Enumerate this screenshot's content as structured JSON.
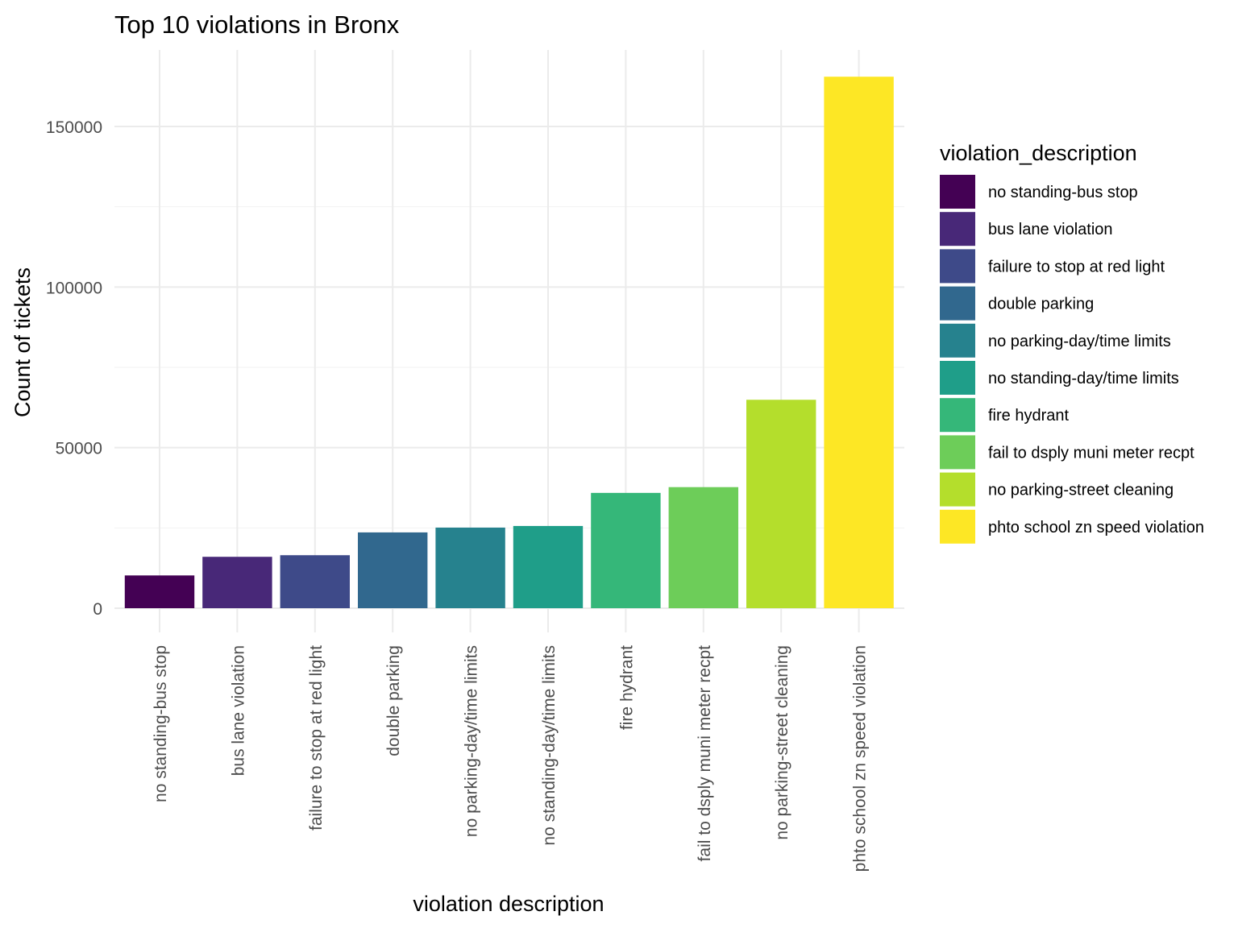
{
  "chart_data": {
    "type": "bar",
    "title": "Top 10 violations in Bronx",
    "xlabel": "violation description",
    "ylabel": "Count of tickets",
    "categories": [
      "no standing-bus stop",
      "bus lane violation",
      "failure to stop at red light",
      "double parking",
      "no parking-day/time limits",
      "no standing-day/time limits",
      "fire hydrant",
      "fail to dsply muni meter recpt",
      "no parking-street cleaning",
      "phto school zn speed violation"
    ],
    "values": [
      10200,
      16000,
      16500,
      23600,
      25100,
      25600,
      35900,
      37700,
      64900,
      165500
    ],
    "colors": [
      "#440154",
      "#482878",
      "#3E4A89",
      "#31688E",
      "#26828E",
      "#1F9E89",
      "#35B779",
      "#6DCD59",
      "#B4DE2C",
      "#FDE725"
    ],
    "ylim": [
      0,
      170000
    ],
    "yticks": [
      0,
      50000,
      100000,
      150000
    ],
    "ytick_labels": [
      "0",
      "50000",
      "100000",
      "150000"
    ],
    "grid": true,
    "legend": {
      "title": "violation_description",
      "placement": "right",
      "entries": [
        "no standing-bus stop",
        "bus lane violation",
        "failure to stop at red light",
        "double parking",
        "no parking-day/time limits",
        "no standing-day/time limits",
        "fire hydrant",
        "fail to dsply muni meter recpt",
        "no parking-street cleaning",
        "phto school zn speed violation"
      ]
    }
  }
}
